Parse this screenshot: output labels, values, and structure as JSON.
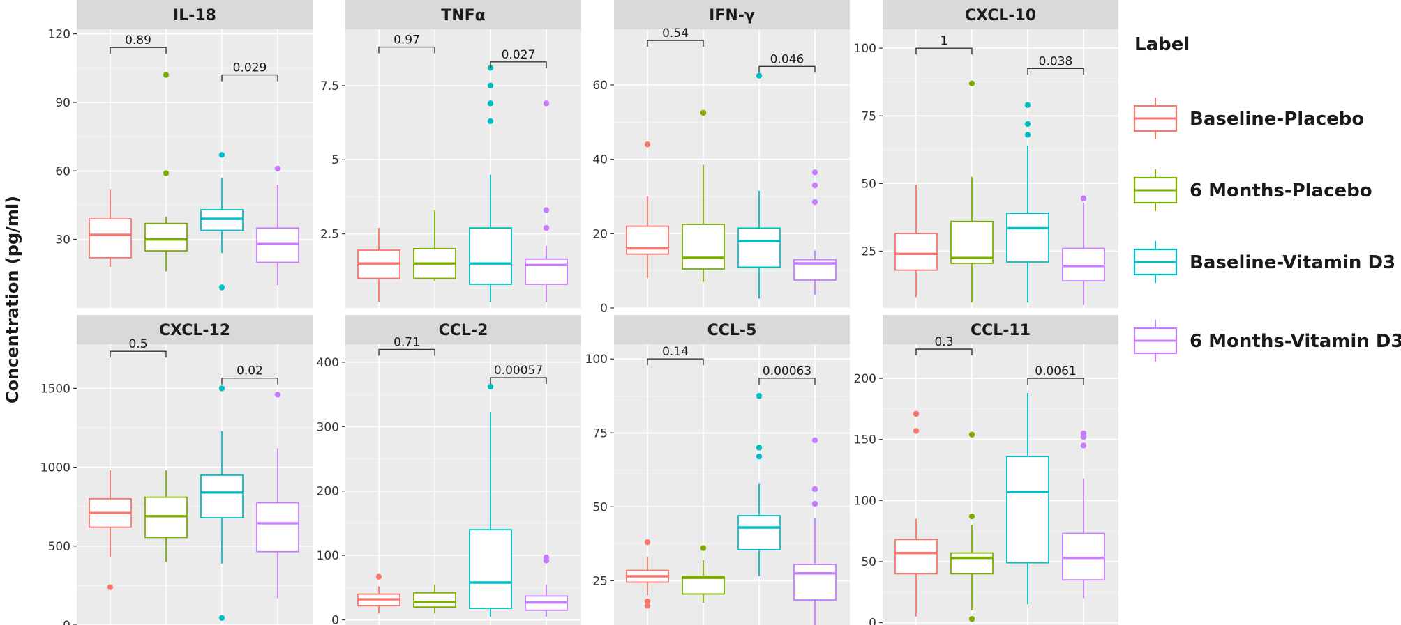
{
  "chart_data": {
    "type": "boxplot",
    "ylabel": "Concentration (pg/ml)",
    "legend": {
      "title": "Label",
      "position": "right",
      "entries": [
        {
          "label": "Baseline-Placebo",
          "color": "#F8766D"
        },
        {
          "label": "6 Months-Placebo",
          "color": "#7CAE00"
        },
        {
          "label": "Baseline-Vitamin D3",
          "color": "#00BFC4"
        },
        {
          "label": "6 Months-Vitamin D3",
          "color": "#C77CFF"
        }
      ]
    },
    "panels": [
      {
        "title": "IL-18",
        "ylim": [
          0,
          122
        ],
        "ticks": [
          {
            "value": 30,
            "label": "30"
          },
          {
            "value": 60,
            "label": "60"
          },
          {
            "value": 90,
            "label": "90"
          },
          {
            "value": 120,
            "label": "120"
          }
        ],
        "boxes": [
          {
            "q1": 22,
            "median": 32,
            "q3": 39,
            "low": 18,
            "high": 52,
            "outliers": []
          },
          {
            "q1": 25,
            "median": 30,
            "q3": 37,
            "low": 16,
            "high": 40,
            "outliers": [
              59,
              102
            ]
          },
          {
            "q1": 34,
            "median": 39,
            "q3": 43,
            "low": 24,
            "high": 57,
            "outliers": [
              9,
              67
            ]
          },
          {
            "q1": 20,
            "median": 28,
            "q3": 35,
            "low": 10,
            "high": 54,
            "outliers": [
              61
            ]
          }
        ],
        "comparisons": [
          {
            "from": 1,
            "to": 2,
            "y": 114,
            "label": "0.89"
          },
          {
            "from": 3,
            "to": 4,
            "y": 102,
            "label": "0.029"
          }
        ]
      },
      {
        "title": "TNFα",
        "ylim": [
          0,
          9.4
        ],
        "ticks": [
          {
            "value": 2.5,
            "label": "2.5"
          },
          {
            "value": 5,
            "label": "5"
          },
          {
            "value": 7.5,
            "label": "7.5"
          }
        ],
        "boxes": [
          {
            "q1": 1.0,
            "median": 1.5,
            "q3": 1.95,
            "low": 0.2,
            "high": 2.7,
            "outliers": []
          },
          {
            "q1": 1.0,
            "median": 1.5,
            "q3": 2.0,
            "low": 0.9,
            "high": 3.3,
            "outliers": []
          },
          {
            "q1": 0.8,
            "median": 1.5,
            "q3": 2.7,
            "low": 0.2,
            "high": 4.5,
            "outliers": [
              6.3,
              6.9,
              7.5,
              8.1
            ]
          },
          {
            "q1": 0.8,
            "median": 1.45,
            "q3": 1.65,
            "low": 0.2,
            "high": 2.1,
            "outliers": [
              2.7,
              3.3,
              6.9
            ]
          }
        ],
        "comparisons": [
          {
            "from": 1,
            "to": 2,
            "y": 8.8,
            "label": "0.97"
          },
          {
            "from": 3,
            "to": 4,
            "y": 8.3,
            "label": "0.027"
          }
        ]
      },
      {
        "title": "IFN-γ",
        "ylim": [
          0,
          75
        ],
        "ticks": [
          {
            "value": 0,
            "label": "0"
          },
          {
            "value": 20,
            "label": "20"
          },
          {
            "value": 40,
            "label": "40"
          },
          {
            "value": 60,
            "label": "60"
          }
        ],
        "boxes": [
          {
            "q1": 14.5,
            "median": 16,
            "q3": 22,
            "low": 8,
            "high": 30,
            "outliers": [
              44
            ]
          },
          {
            "q1": 10.5,
            "median": 13.5,
            "q3": 22.5,
            "low": 7,
            "high": 38.5,
            "outliers": [
              52.5
            ]
          },
          {
            "q1": 11,
            "median": 18,
            "q3": 21.5,
            "low": 2.5,
            "high": 31.5,
            "outliers": [
              62.5
            ]
          },
          {
            "q1": 7.5,
            "median": 12,
            "q3": 13,
            "low": 3.5,
            "high": 15.5,
            "outliers": [
              28.5,
              33,
              36.5
            ]
          }
        ],
        "comparisons": [
          {
            "from": 1,
            "to": 2,
            "y": 72,
            "label": "0.54"
          },
          {
            "from": 3,
            "to": 4,
            "y": 65,
            "label": "0.046"
          }
        ]
      },
      {
        "title": "CXCL-10",
        "ylim": [
          4,
          107
        ],
        "ticks": [
          {
            "value": 25,
            "label": "25"
          },
          {
            "value": 50,
            "label": "50"
          },
          {
            "value": 75,
            "label": "75"
          },
          {
            "value": 100,
            "label": "100"
          }
        ],
        "boxes": [
          {
            "q1": 18,
            "median": 24,
            "q3": 31.5,
            "low": 8,
            "high": 49.5,
            "outliers": []
          },
          {
            "q1": 20.5,
            "median": 22.5,
            "q3": 36,
            "low": 6,
            "high": 52.5,
            "outliers": [
              87
            ]
          },
          {
            "q1": 21,
            "median": 33.5,
            "q3": 39,
            "low": 6,
            "high": 64,
            "outliers": [
              68,
              72,
              79
            ]
          },
          {
            "q1": 14,
            "median": 19.5,
            "q3": 26,
            "low": 5,
            "high": 43,
            "outliers": [
              44.5
            ]
          }
        ],
        "comparisons": [
          {
            "from": 1,
            "to": 2,
            "y": 100,
            "label": "1"
          },
          {
            "from": 3,
            "to": 4,
            "y": 92.5,
            "label": "0.038"
          }
        ]
      },
      {
        "title": "CXCL-12",
        "ylim": [
          0,
          1780
        ],
        "ticks": [
          {
            "value": 0,
            "label": "0"
          },
          {
            "value": 500,
            "label": "500"
          },
          {
            "value": 1000,
            "label": "1000"
          },
          {
            "value": 1500,
            "label": "1500"
          }
        ],
        "boxes": [
          {
            "q1": 620,
            "median": 710,
            "q3": 800,
            "low": 430,
            "high": 980,
            "outliers": [
              240
            ]
          },
          {
            "q1": 555,
            "median": 690,
            "q3": 810,
            "low": 400,
            "high": 980,
            "outliers": []
          },
          {
            "q1": 680,
            "median": 840,
            "q3": 950,
            "low": 390,
            "high": 1230,
            "outliers": [
              45,
              1500
            ]
          },
          {
            "q1": 465,
            "median": 645,
            "q3": 775,
            "low": 170,
            "high": 1120,
            "outliers": [
              1460
            ]
          }
        ],
        "comparisons": [
          {
            "from": 1,
            "to": 2,
            "y": 1735,
            "label": "0.5"
          },
          {
            "from": 3,
            "to": 4,
            "y": 1565,
            "label": "0.02"
          }
        ]
      },
      {
        "title": "CCL-2",
        "ylim": [
          -8,
          428
        ],
        "ticks": [
          {
            "value": 0,
            "label": "0"
          },
          {
            "value": 100,
            "label": "100"
          },
          {
            "value": 200,
            "label": "200"
          },
          {
            "value": 300,
            "label": "300"
          },
          {
            "value": 400,
            "label": "400"
          }
        ],
        "boxes": [
          {
            "q1": 22,
            "median": 32,
            "q3": 40,
            "low": 10,
            "high": 52,
            "outliers": [
              67
            ]
          },
          {
            "q1": 20,
            "median": 28,
            "q3": 42,
            "low": 10,
            "high": 55,
            "outliers": []
          },
          {
            "q1": 18,
            "median": 58,
            "q3": 140,
            "low": 5,
            "high": 322,
            "outliers": [
              362
            ]
          },
          {
            "q1": 15,
            "median": 27,
            "q3": 37,
            "low": 5,
            "high": 55,
            "outliers": [
              92,
              97
            ]
          }
        ],
        "comparisons": [
          {
            "from": 1,
            "to": 2,
            "y": 420,
            "label": "0.71"
          },
          {
            "from": 3,
            "to": 4,
            "y": 376,
            "label": "0.00057"
          }
        ]
      },
      {
        "title": "CCL-5",
        "ylim": [
          10,
          105
        ],
        "ticks": [
          {
            "value": 25,
            "label": "25"
          },
          {
            "value": 50,
            "label": "50"
          },
          {
            "value": 75,
            "label": "75"
          },
          {
            "value": 100,
            "label": "100"
          }
        ],
        "boxes": [
          {
            "q1": 24.5,
            "median": 26.5,
            "q3": 28.5,
            "low": 20,
            "high": 33,
            "outliers": [
              16.5,
              18,
              38
            ]
          },
          {
            "q1": 20.5,
            "median": 26,
            "q3": 26.5,
            "low": 17.5,
            "high": 32,
            "outliers": [
              36
            ]
          },
          {
            "q1": 35.5,
            "median": 43,
            "q3": 47,
            "low": 26.5,
            "high": 58,
            "outliers": [
              67,
              70,
              87.5
            ]
          },
          {
            "q1": 18.5,
            "median": 27.5,
            "q3": 30.5,
            "low": 8.5,
            "high": 46,
            "outliers": [
              51,
              56,
              72.5
            ]
          }
        ],
        "comparisons": [
          {
            "from": 1,
            "to": 2,
            "y": 100,
            "label": "0.14"
          },
          {
            "from": 3,
            "to": 4,
            "y": 93.5,
            "label": "0.00063"
          }
        ]
      },
      {
        "title": "CCL-11",
        "ylim": [
          -2,
          228
        ],
        "ticks": [
          {
            "value": 0,
            "label": "0"
          },
          {
            "value": 50,
            "label": "50"
          },
          {
            "value": 100,
            "label": "100"
          },
          {
            "value": 150,
            "label": "150"
          },
          {
            "value": 200,
            "label": "200"
          }
        ],
        "boxes": [
          {
            "q1": 40,
            "median": 57,
            "q3": 68,
            "low": 5,
            "high": 85,
            "outliers": [
              157,
              171
            ]
          },
          {
            "q1": 40,
            "median": 53,
            "q3": 57,
            "low": 10,
            "high": 80,
            "outliers": [
              3,
              87,
              154
            ]
          },
          {
            "q1": 49,
            "median": 107,
            "q3": 136,
            "low": 15,
            "high": 188,
            "outliers": []
          },
          {
            "q1": 35,
            "median": 53,
            "q3": 73,
            "low": 20,
            "high": 118,
            "outliers": [
              145,
              152,
              155
            ]
          }
        ],
        "comparisons": [
          {
            "from": 1,
            "to": 2,
            "y": 224,
            "label": "0.3"
          },
          {
            "from": 3,
            "to": 4,
            "y": 200,
            "label": "0.0061"
          }
        ]
      }
    ]
  }
}
